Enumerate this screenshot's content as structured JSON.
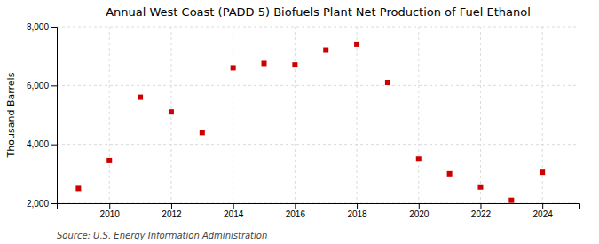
{
  "chart_data": {
    "type": "scatter",
    "title": "Annual West Coast (PADD 5) Biofuels Plant Net Production of Fuel Ethanol",
    "ylabel": "Thousand Barrels",
    "annotations": [
      "Source: U.S. Energy Information Administration"
    ],
    "x": [
      2009,
      2010,
      2011,
      2012,
      2013,
      2014,
      2015,
      2016,
      2017,
      2018,
      2019,
      2020,
      2021,
      2022,
      2023,
      2024
    ],
    "values": [
      2500,
      3450,
      5600,
      5100,
      4400,
      6600,
      6750,
      6700,
      7200,
      7400,
      6100,
      3500,
      3000,
      2550,
      2100,
      3050
    ],
    "color": "#cc0000",
    "marker": "square",
    "xlim": [
      2008.3,
      2025.2
    ],
    "xticks": [
      2010,
      2012,
      2014,
      2016,
      2018,
      2020,
      2022,
      2024
    ],
    "ylim": [
      2000,
      8000
    ],
    "yticks": [
      {
        "value": 2000,
        "label": "2,000"
      },
      {
        "value": 4000,
        "label": "4,000"
      },
      {
        "value": 6000,
        "label": "6,000"
      },
      {
        "value": 8000,
        "label": "8,000"
      }
    ],
    "grid": true
  }
}
